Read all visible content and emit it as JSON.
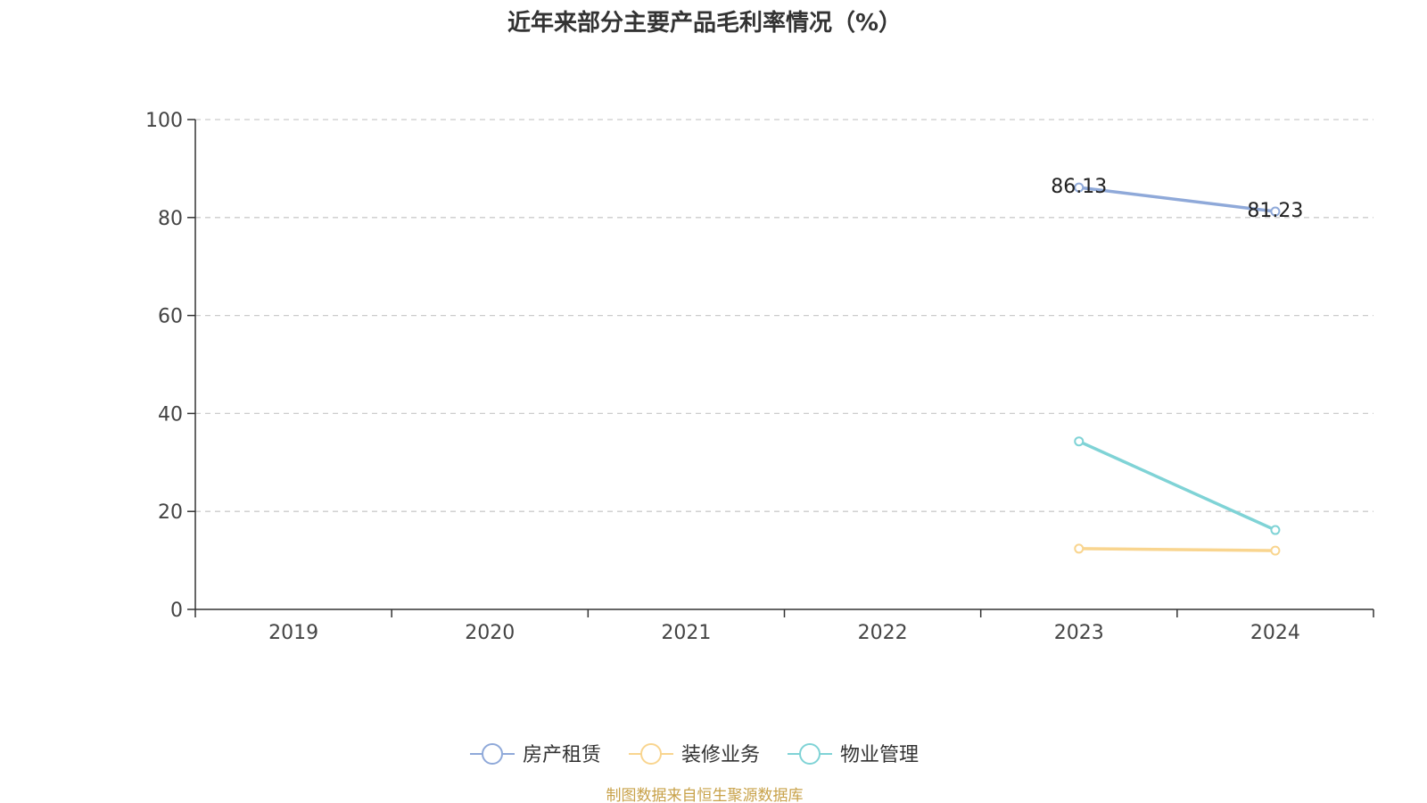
{
  "chart_data": {
    "type": "line",
    "title": "近年来部分主要产品毛利率情况（%）",
    "categories": [
      "2019",
      "2020",
      "2021",
      "2022",
      "2023",
      "2024"
    ],
    "ylim": [
      0,
      100
    ],
    "yticks": [
      0,
      20,
      40,
      60,
      80,
      100
    ],
    "grid": true,
    "legend_position": "bottom-center",
    "series": [
      {
        "name": "房产租赁",
        "color": "#8fa9d9",
        "values": [
          null,
          null,
          null,
          null,
          86.13,
          81.23
        ],
        "labels": [
          null,
          null,
          null,
          null,
          "86.13",
          "81.23"
        ]
      },
      {
        "name": "装修业务",
        "color": "#f9d58f",
        "values": [
          null,
          null,
          null,
          null,
          12.4,
          12.0
        ],
        "labels": [
          null,
          null,
          null,
          null,
          null,
          null
        ]
      },
      {
        "name": "物业管理",
        "color": "#7fd3d6",
        "values": [
          null,
          null,
          null,
          null,
          34.3,
          16.2
        ],
        "labels": [
          null,
          null,
          null,
          null,
          null,
          null
        ]
      }
    ]
  },
  "footer": {
    "source": "制图数据来自恒生聚源数据库",
    "source_color": "#c8a24a"
  }
}
